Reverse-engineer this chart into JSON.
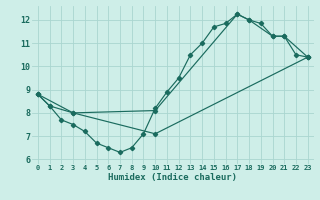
{
  "xlabel": "Humidex (Indice chaleur)",
  "bg_color": "#ceeee8",
  "line_color": "#1a6b5e",
  "grid_color": "#aad6d0",
  "xlim": [
    -0.5,
    23.5
  ],
  "ylim": [
    5.8,
    12.6
  ],
  "xticks": [
    0,
    1,
    2,
    3,
    4,
    5,
    6,
    7,
    8,
    9,
    10,
    11,
    12,
    13,
    14,
    15,
    16,
    17,
    18,
    19,
    20,
    21,
    22,
    23
  ],
  "yticks": [
    6,
    7,
    8,
    9,
    10,
    11,
    12
  ],
  "line1_x": [
    0,
    1,
    2,
    3,
    4,
    5,
    6,
    7,
    8,
    9,
    10,
    11,
    12,
    13,
    14,
    15,
    16,
    17,
    18,
    19,
    20,
    21,
    22,
    23
  ],
  "line1_y": [
    8.8,
    8.3,
    7.7,
    7.5,
    7.2,
    6.7,
    6.5,
    6.3,
    6.5,
    7.1,
    8.2,
    8.9,
    9.5,
    10.5,
    11.0,
    11.7,
    11.85,
    12.25,
    12.0,
    11.85,
    11.3,
    11.3,
    10.5,
    10.4
  ],
  "line2_x": [
    0,
    1,
    3,
    10,
    17,
    18,
    20,
    21,
    23
  ],
  "line2_y": [
    8.8,
    8.3,
    8.0,
    8.1,
    12.25,
    12.0,
    11.3,
    11.3,
    10.4
  ],
  "line3_x": [
    0,
    3,
    10,
    23
  ],
  "line3_y": [
    8.8,
    8.0,
    7.1,
    10.4
  ]
}
